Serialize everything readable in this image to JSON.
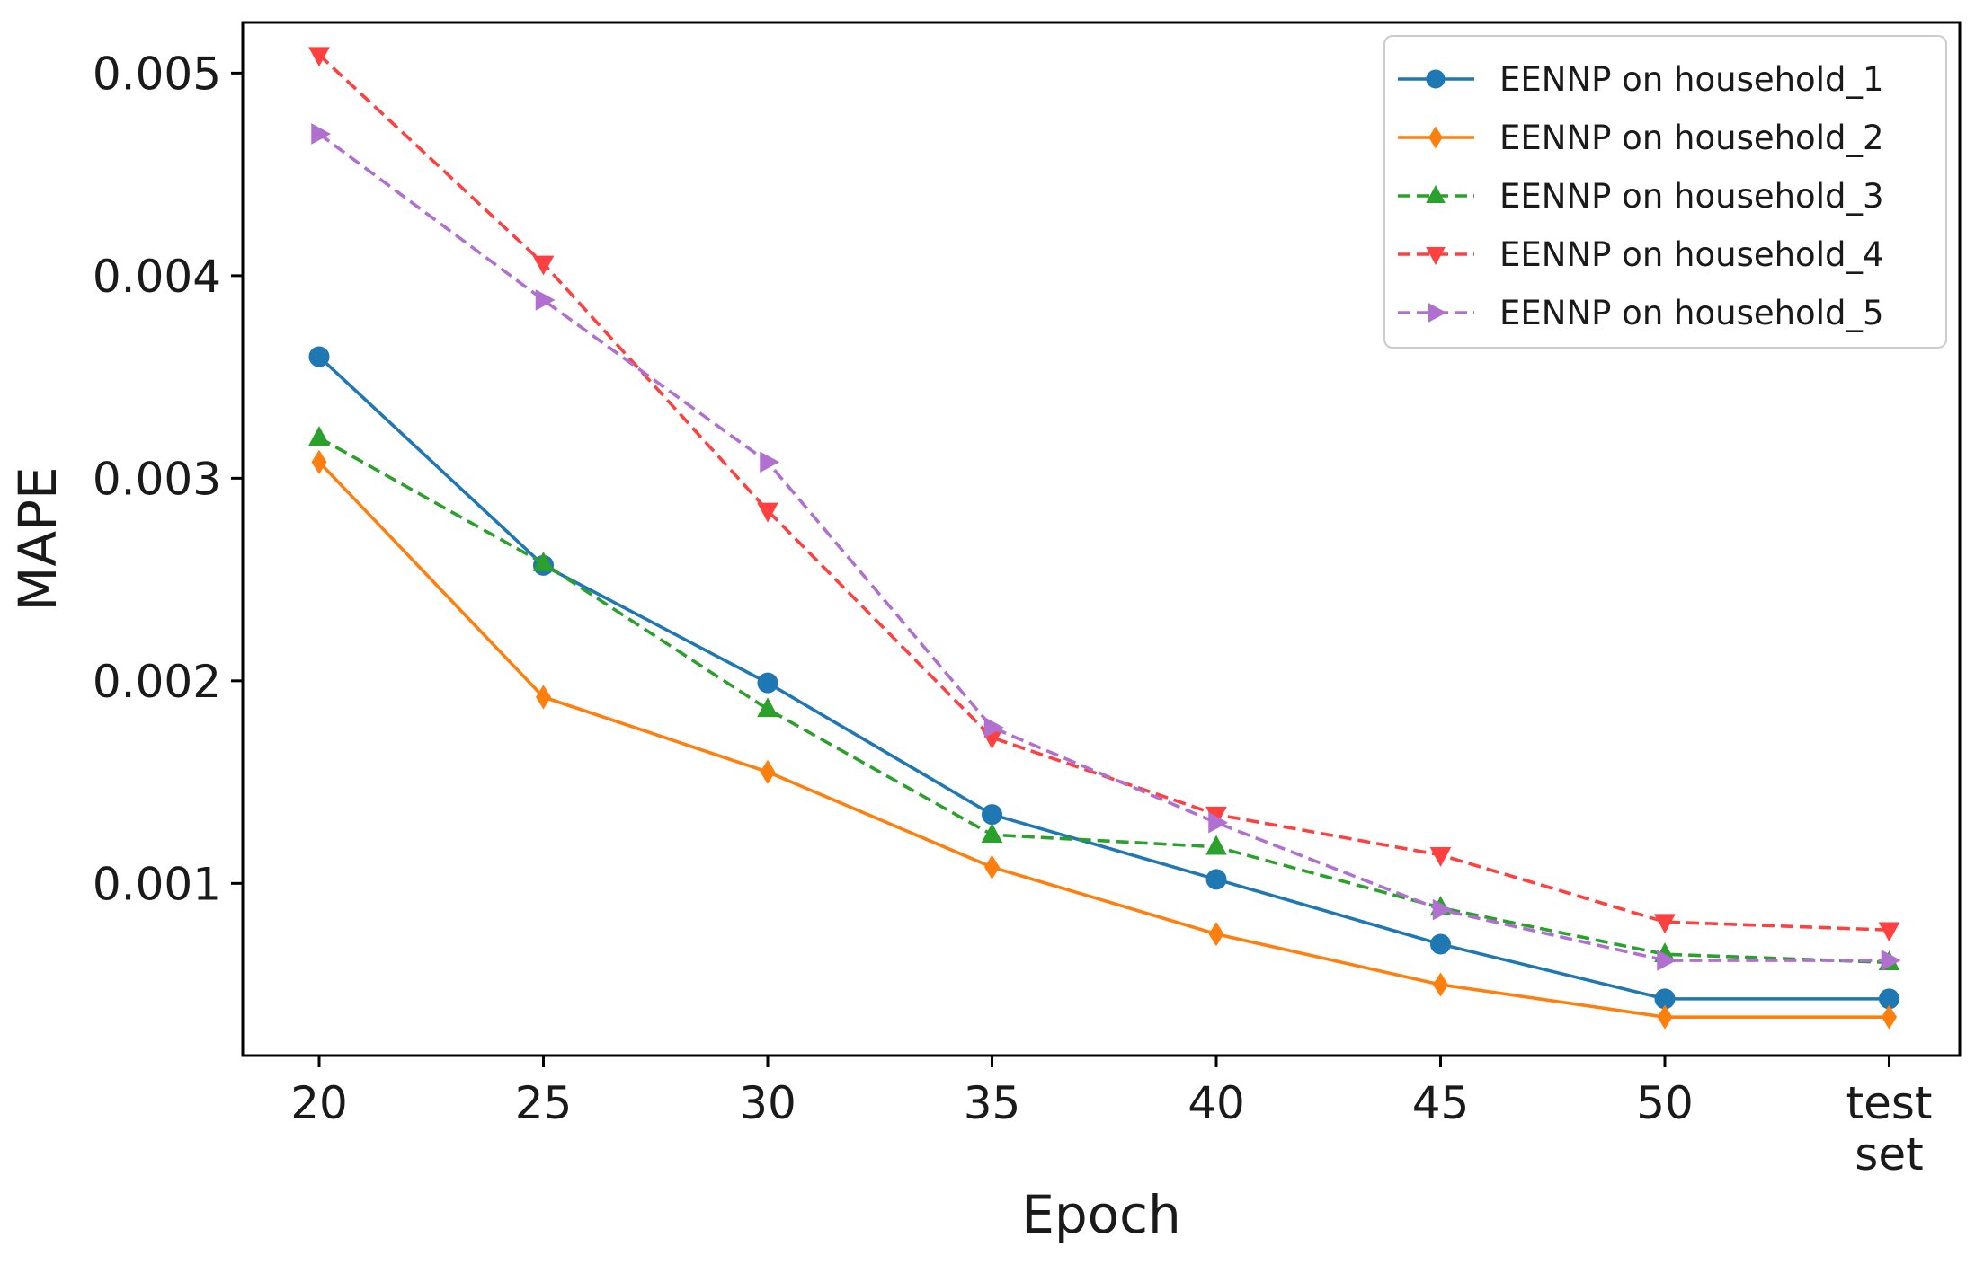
{
  "chart_data": {
    "type": "line",
    "title": "",
    "xlabel": "Epoch",
    "ylabel": "MAPE",
    "categories": [
      "20",
      "25",
      "30",
      "35",
      "40",
      "45",
      "50",
      [
        "test",
        "set"
      ]
    ],
    "ylim": [
      0.00015,
      0.00525
    ],
    "yticks": [
      "0.001",
      "0.002",
      "0.003",
      "0.004",
      "0.005"
    ],
    "ytick_values": [
      0.001,
      0.002,
      0.003,
      0.004,
      0.005
    ],
    "grid": false,
    "legend_position": "top-right",
    "series": [
      {
        "name": "EENNP on household_1",
        "color": "#1f77b4",
        "linestyle": "solid",
        "marker": "circle",
        "values": [
          0.0036,
          0.00257,
          0.00199,
          0.00134,
          0.00102,
          0.0007,
          0.00043,
          0.00043
        ]
      },
      {
        "name": "EENNP on household_2",
        "color": "#ff7f0e",
        "linestyle": "solid",
        "marker": "thin-diamond",
        "values": [
          0.00308,
          0.00192,
          0.00155,
          0.00108,
          0.00075,
          0.0005,
          0.00034,
          0.00034
        ]
      },
      {
        "name": "EENNP on household_3",
        "color": "#2ca02c",
        "linestyle": "dashed",
        "marker": "triangle-up",
        "values": [
          0.0032,
          0.00258,
          0.00186,
          0.00124,
          0.00118,
          0.00088,
          0.00065,
          0.00061
        ]
      },
      {
        "name": "EENNP on household_4",
        "color": "#ff4040",
        "linestyle": "dashed",
        "marker": "triangle-down",
        "values": [
          0.00509,
          0.00406,
          0.00284,
          0.00172,
          0.00134,
          0.00114,
          0.00081,
          0.00077
        ]
      },
      {
        "name": "EENNP on household_5",
        "color": "#b070d0",
        "linestyle": "dashed",
        "marker": "triangle-right",
        "values": [
          0.0047,
          0.00388,
          0.00308,
          0.00177,
          0.0013,
          0.00087,
          0.00062,
          0.00062
        ]
      }
    ]
  }
}
